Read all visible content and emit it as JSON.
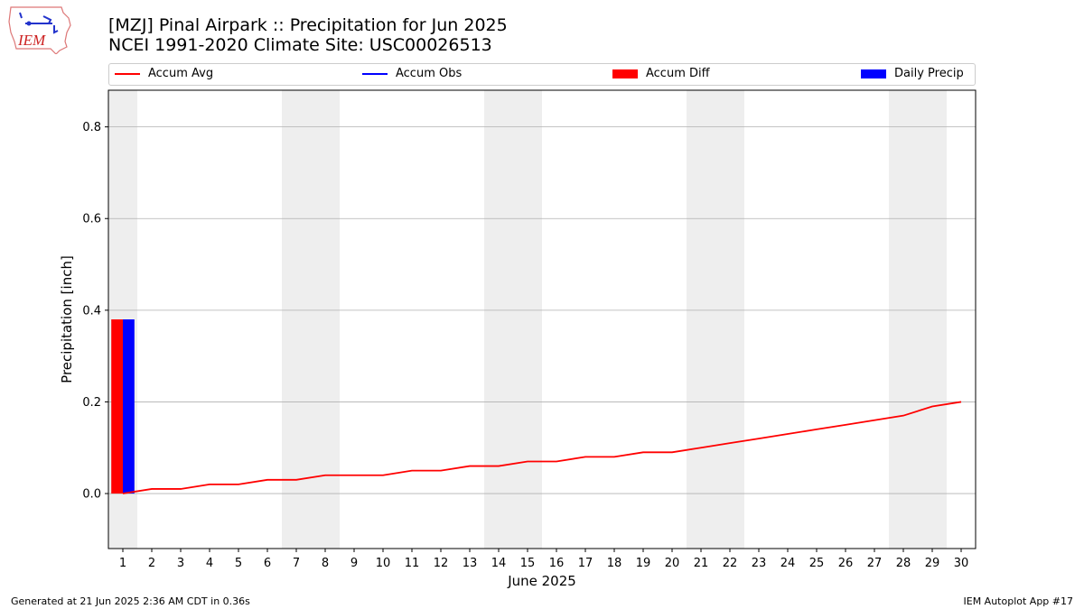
{
  "header": {
    "title": "[MZJ] Pinal Airpark :: Precipitation for Jun 2025",
    "subtitle": "NCEI 1991-2020 Climate Site: USC00026513",
    "logo_text": "IEM"
  },
  "legend": [
    {
      "label": "Accum Avg",
      "color": "#ff0000",
      "kind": "line"
    },
    {
      "label": "Accum Obs",
      "color": "#0000ff",
      "kind": "line"
    },
    {
      "label": "Accum Diff",
      "color": "#ff0000",
      "kind": "box"
    },
    {
      "label": "Daily Precip",
      "color": "#0000ff",
      "kind": "box"
    }
  ],
  "footer": {
    "generated": "Generated at 21 Jun 2025 2:36 AM CDT in 0.36s",
    "app": "IEM Autoplot App #17"
  },
  "chart_data": {
    "type": "bar",
    "xlabel": "June 2025",
    "ylabel": "Precipitation [inch]",
    "ylim": [
      -0.12,
      0.88
    ],
    "xlim": [
      0.5,
      30.5
    ],
    "yticks": [
      0.0,
      0.2,
      0.4,
      0.6,
      0.8
    ],
    "ytick_labels": [
      "0.0",
      "0.2",
      "0.4",
      "0.6",
      "0.8"
    ],
    "x": [
      1,
      2,
      3,
      4,
      5,
      6,
      7,
      8,
      9,
      10,
      11,
      12,
      13,
      14,
      15,
      16,
      17,
      18,
      19,
      20,
      21,
      22,
      23,
      24,
      25,
      26,
      27,
      28,
      29,
      30
    ],
    "weekend_days": [
      1,
      7,
      8,
      14,
      15,
      21,
      22,
      28,
      29
    ],
    "grid": "horizontal",
    "series": [
      {
        "name": "Accum Avg",
        "type": "line",
        "color": "#ff0000",
        "values": [
          0.0,
          0.01,
          0.01,
          0.02,
          0.02,
          0.03,
          0.03,
          0.04,
          0.04,
          0.04,
          0.05,
          0.05,
          0.06,
          0.06,
          0.07,
          0.07,
          0.08,
          0.08,
          0.09,
          0.09,
          0.1,
          0.11,
          0.12,
          0.13,
          0.14,
          0.15,
          0.16,
          0.17,
          0.19,
          0.2
        ]
      },
      {
        "name": "Accum Diff",
        "type": "bar",
        "color": "#ff0000",
        "x": [
          1
        ],
        "values": [
          0.38
        ]
      },
      {
        "name": "Daily Precip",
        "type": "bar",
        "color": "#0000ff",
        "x": [
          1
        ],
        "values": [
          0.38
        ]
      }
    ]
  }
}
